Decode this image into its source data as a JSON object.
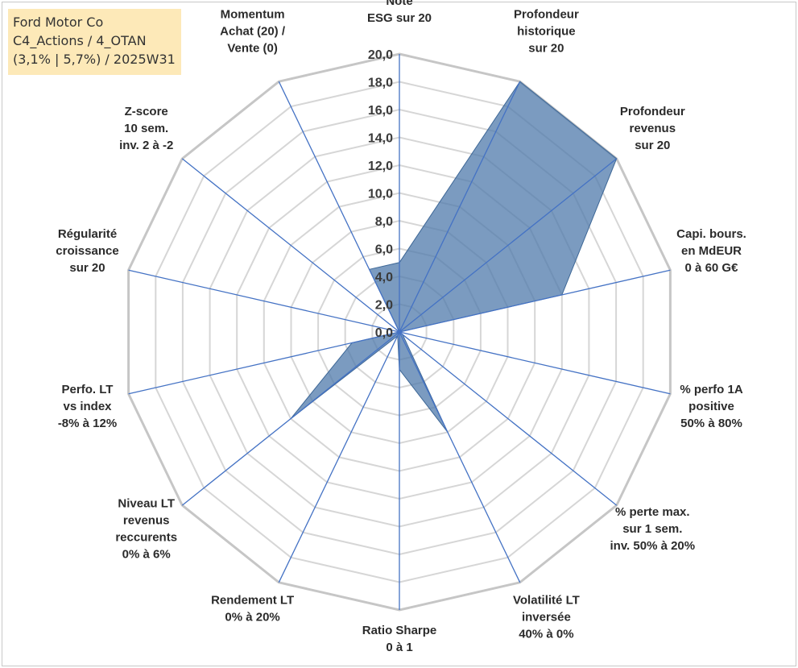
{
  "info_box": {
    "line1": "Ford Motor Co",
    "line2": "C4_Actions / 4_OTAN",
    "line3": "(3,1% | 5,7%) / 2025W31"
  },
  "colors": {
    "fill": "#4f7aab",
    "fill_opacity": 0.75,
    "grid_ring": "#c6c6c6",
    "grid_inner": "#d6d6d6",
    "spoke": "#4472c4",
    "info_bg": "#fde9b8"
  },
  "chart_data": {
    "type": "radar",
    "title": "",
    "rmin": 0,
    "rmax": 20,
    "ticks": [
      "0,0",
      "2,0",
      "4,0",
      "6,0",
      "8,0",
      "10,0",
      "12,0",
      "14,0",
      "16,0",
      "18,0",
      "20,0"
    ],
    "grid": true,
    "legend": "none",
    "axes": [
      {
        "label": [
          "Note",
          "ESG sur 20"
        ],
        "value": 5.0
      },
      {
        "label": [
          "Profondeur",
          "historique",
          "sur 20"
        ],
        "value": 20.0
      },
      {
        "label": [
          "Profondeur",
          "revenus",
          "sur 20"
        ],
        "value": 20.0
      },
      {
        "label": [
          "Capi. bours.",
          "en MdEUR",
          "0 à 60 G€"
        ],
        "value": 12.0
      },
      {
        "label": [
          "% perfo 1A",
          "positive",
          "50% à 80%"
        ],
        "value": 0.0
      },
      {
        "label": [
          "% perte max.",
          "sur 1 sem.",
          "inv. 50% à 20%"
        ],
        "value": 0.3
      },
      {
        "label": [
          "Volatilité LT",
          "inversée",
          "40% à 0%"
        ],
        "value": 8.0
      },
      {
        "label": [
          "Ratio Sharpe",
          "0 à 1"
        ],
        "value": 2.7
      },
      {
        "label": [
          "Rendement LT",
          "0% à 20%"
        ],
        "value": 0.3
      },
      {
        "label": [
          "Niveau LT",
          "revenus",
          "reccurents",
          "0% à 6%"
        ],
        "value": 10.0
      },
      {
        "label": [
          "Perfo. LT",
          "vs index",
          "-8% à 12%"
        ],
        "value": 3.5
      },
      {
        "label": [
          "Régularité",
          "croissance",
          "sur 20"
        ],
        "value": 0.0
      },
      {
        "label": [
          "Z-score",
          "10 sem.",
          "inv. 2 à -2"
        ],
        "value": 0.0
      },
      {
        "label": [
          "Momentum",
          "Achat (20) /",
          "Vente (0)"
        ],
        "value": 5.0
      }
    ]
  }
}
